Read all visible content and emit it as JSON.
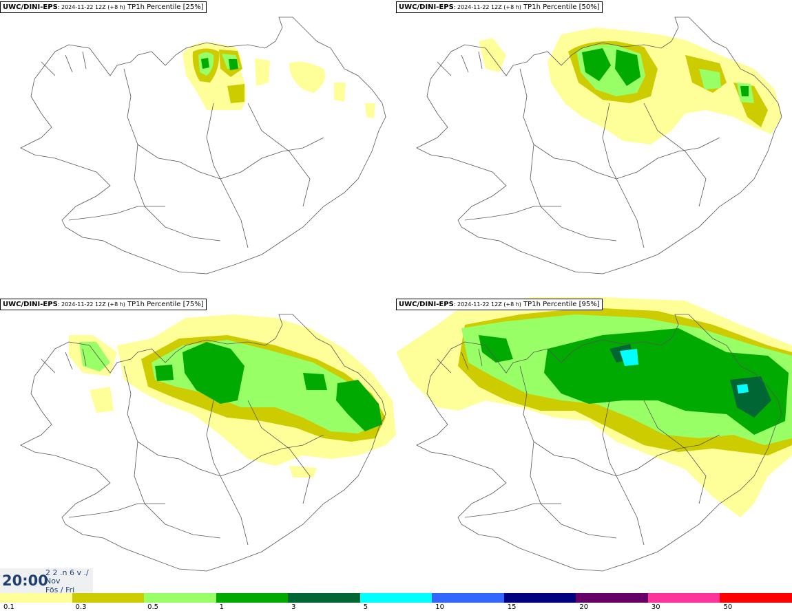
{
  "panels": [
    {
      "model": "UWC/DINI-EPS",
      "run": ": 2024-11-22 12Z (+8 h)",
      "var": "TP1h Percentile [25%]"
    },
    {
      "model": "UWC/DINI-EPS",
      "run": ": 2024-11-22 12Z (+8 h)",
      "var": "TP1h Percentile [50%]"
    },
    {
      "model": "UWC/DINI-EPS",
      "run": ": 2024-11-22 12Z (+8 h)",
      "var": "TP1h Percentile [75%]"
    },
    {
      "model": "UWC/DINI-EPS",
      "run": ": 2024-11-22 12Z (+8 h)",
      "var": "TP1h Percentile [95%]"
    }
  ],
  "valid_time": {
    "time": "20:00",
    "date": "2 2 .n 6 v ./",
    "month": "Nov",
    "weekday": "Fös / Fri"
  },
  "legend": {
    "colors": [
      "#ffff99",
      "#cccc00",
      "#99ff66",
      "#00aa00",
      "#006633",
      "#00ffff",
      "#3366ff",
      "#000080",
      "#660066",
      "#ff3399",
      "#ff0000"
    ],
    "ticks": [
      "0.1",
      "0.3",
      "0.5",
      "1",
      "3",
      "5",
      "10",
      "15",
      "20",
      "30",
      "50"
    ]
  }
}
